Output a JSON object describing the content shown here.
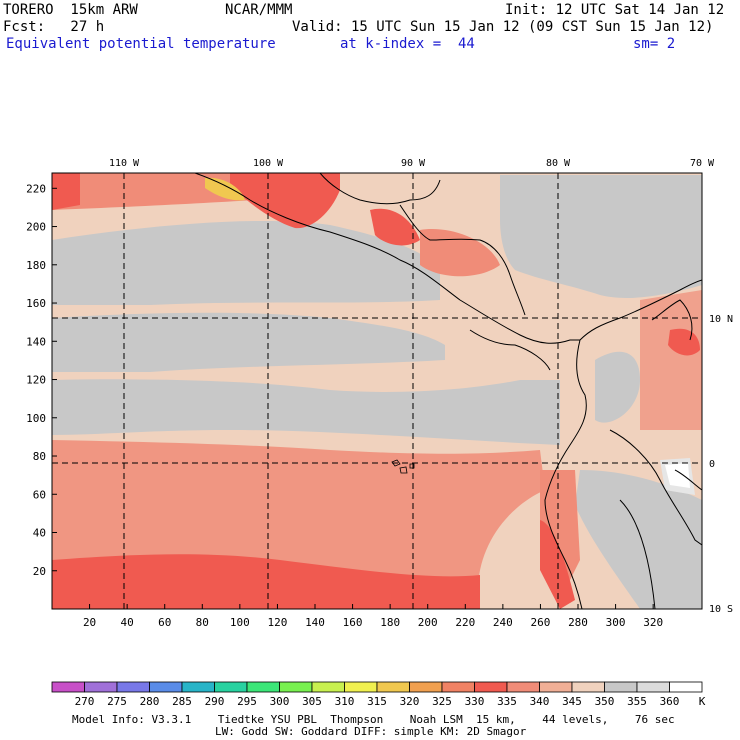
{
  "header": {
    "model": "TORERO  15km ARW",
    "center": "NCAR/MMM",
    "init": "Init: 12 UTC Sat 14 Jan 12",
    "fcst": "Fcst:   27 h",
    "valid": "Valid: 15 UTC Sun 15 Jan 12 (09 CST Sun 15 Jan 12)",
    "field": "Equivalent potential temperature",
    "kindex": "at k-index =  44",
    "sm": "sm= 2"
  },
  "map": {
    "lon_labels": [
      "110 W",
      "100 W",
      "90 W",
      "80 W",
      "70 W"
    ],
    "lat_labels": [
      "10 N",
      "0",
      "10 S"
    ],
    "y_ticks": [
      "20",
      "40",
      "60",
      "80",
      "100",
      "120",
      "140",
      "160",
      "180",
      "200",
      "220"
    ],
    "x_ticks": [
      "20",
      "40",
      "60",
      "80",
      "100",
      "120",
      "140",
      "160",
      "180",
      "200",
      "220",
      "240",
      "260",
      "280",
      "300",
      "320"
    ]
  },
  "colorbar": {
    "labels": [
      "270",
      "275",
      "280",
      "285",
      "290",
      "295",
      "300",
      "305",
      "310",
      "315",
      "320",
      "325",
      "330",
      "335",
      "340",
      "345",
      "350",
      "355",
      "360"
    ],
    "unit": "K",
    "colors": [
      "#c850c8",
      "#a070d8",
      "#7878e8",
      "#5a8ce8",
      "#28b4c8",
      "#28d2a0",
      "#3ce678",
      "#78f050",
      "#c8f050",
      "#f0f050",
      "#f0c850",
      "#f0a050",
      "#f08264",
      "#f05a50",
      "#f08c78",
      "#f0af96",
      "#f0d2be",
      "#c8c8c8",
      "#dcdcdc",
      "#ffffff"
    ]
  },
  "footer": {
    "line1": "Model Info: V3.3.1    Tiedtke YSU PBL  Thompson    Noah LSM  15 km,    44 levels,    76 sec",
    "line2": "LW: Godd SW: Goddard DIFF: simple KM: 2D Smagor"
  }
}
